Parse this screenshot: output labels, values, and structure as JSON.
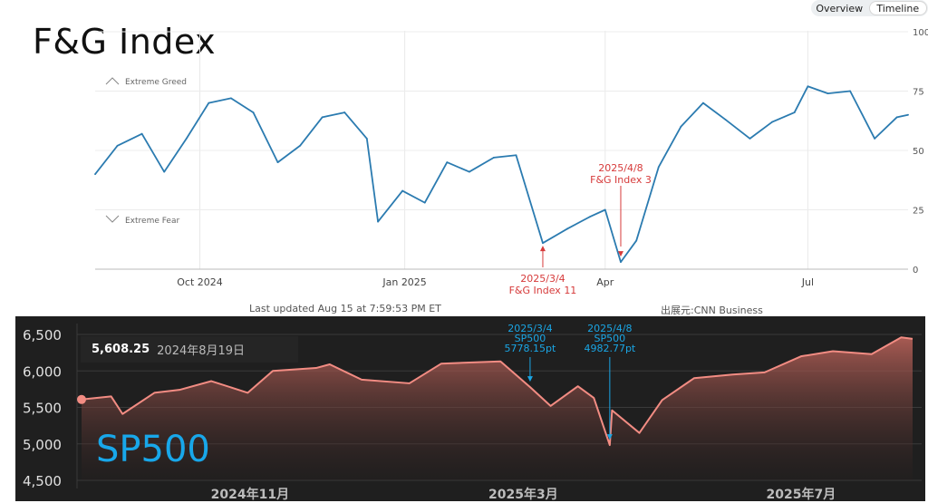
{
  "header": {
    "tabs": [
      {
        "label": "Overview"
      },
      {
        "label": "Timeline"
      }
    ],
    "title": "F&G Index"
  },
  "fg_chart": {
    "zone_labels": {
      "greed": "Extreme Greed",
      "fear": "Extreme Fear"
    },
    "footer": {
      "updated": "Last updated Aug 15 at 7:59:53 PM ET",
      "source": "出展元:CNN Business"
    }
  },
  "sp_chart": {
    "label": "SP500",
    "tooltip": {
      "value": "5,608.25",
      "date": "2024年8月19日"
    }
  },
  "colors": {
    "fg_line": "#2b7bb0",
    "fg_annotation": "#d63a3a",
    "sp_line": "#f28c83",
    "sp_annotation": "#1aa6e5",
    "sp_background": "#1f1f1f"
  },
  "chart_data": [
    {
      "type": "line",
      "title": "",
      "ylim": [
        0,
        100
      ],
      "y_ticks": [
        "0",
        "25",
        "50",
        "75",
        "100"
      ],
      "x_ticks": [
        "Oct 2024",
        "Jan 2025",
        "Apr",
        "Jul"
      ],
      "grid": true,
      "x": [
        "2024-08-15",
        "2024-08-25",
        "2024-09-05",
        "2024-09-15",
        "2024-09-25",
        "2024-10-05",
        "2024-10-15",
        "2024-10-25",
        "2024-11-05",
        "2024-11-15",
        "2024-11-25",
        "2024-12-05",
        "2024-12-15",
        "2024-12-20",
        "2024-12-31",
        "2025-01-10",
        "2025-01-20",
        "2025-01-30",
        "2025-02-10",
        "2025-02-20",
        "2025-03-04",
        "2025-03-15",
        "2025-03-25",
        "2025-04-01",
        "2025-04-08",
        "2025-04-15",
        "2025-04-25",
        "2025-05-05",
        "2025-05-15",
        "2025-05-25",
        "2025-06-05",
        "2025-06-15",
        "2025-06-25",
        "2025-07-01",
        "2025-07-10",
        "2025-07-20",
        "2025-07-31",
        "2025-08-10",
        "2025-08-15"
      ],
      "values": [
        40,
        52,
        57,
        41,
        55,
        70,
        72,
        66,
        45,
        52,
        64,
        66,
        55,
        20,
        33,
        28,
        45,
        41,
        47,
        48,
        11,
        17,
        22,
        25,
        3,
        12,
        43,
        60,
        70,
        63,
        55,
        62,
        66,
        77,
        74,
        75,
        55,
        64,
        65
      ],
      "annotations": [
        {
          "x": "2025-03-04",
          "y": 11,
          "label": [
            "2025/3/4",
            "F&G Index 11"
          ]
        },
        {
          "x": "2025-04-08",
          "y": 3,
          "label": [
            "2025/4/8",
            "F&G Index 3"
          ]
        }
      ]
    },
    {
      "type": "area",
      "title": "",
      "ylim": [
        4500,
        6500
      ],
      "y_ticks": [
        "4,500",
        "5,000",
        "5,500",
        "6,000",
        "6,500"
      ],
      "x_ticks": [
        "2024年11月",
        "2025年3月",
        "2025年7月"
      ],
      "grid": true,
      "x": [
        "2024-08-19",
        "2024-09-01",
        "2024-09-06",
        "2024-09-20",
        "2024-10-01",
        "2024-10-15",
        "2024-10-31",
        "2024-11-11",
        "2024-11-30",
        "2024-12-06",
        "2024-12-20",
        "2025-01-10",
        "2025-01-24",
        "2025-02-19",
        "2025-03-04",
        "2025-03-13",
        "2025-03-25",
        "2025-04-01",
        "2025-04-08",
        "2025-04-09",
        "2025-04-21",
        "2025-05-01",
        "2025-05-15",
        "2025-06-01",
        "2025-06-15",
        "2025-07-01",
        "2025-07-15",
        "2025-08-01",
        "2025-08-14",
        "2025-08-19"
      ],
      "values": [
        5608,
        5650,
        5410,
        5700,
        5740,
        5860,
        5700,
        6000,
        6040,
        6090,
        5880,
        5830,
        6100,
        6130,
        5778,
        5520,
        5790,
        5630,
        4983,
        5460,
        5150,
        5600,
        5900,
        5950,
        5980,
        6200,
        6270,
        6230,
        6460,
        6440
      ],
      "annotations": [
        {
          "x": "2025-03-04",
          "y": 5778.15,
          "label": [
            "2025/3/4",
            "SP500",
            "5778.15pt"
          ]
        },
        {
          "x": "2025-04-08",
          "y": 4982.77,
          "label": [
            "2025/4/8",
            "SP500",
            "4982.77pt"
          ]
        }
      ]
    }
  ]
}
